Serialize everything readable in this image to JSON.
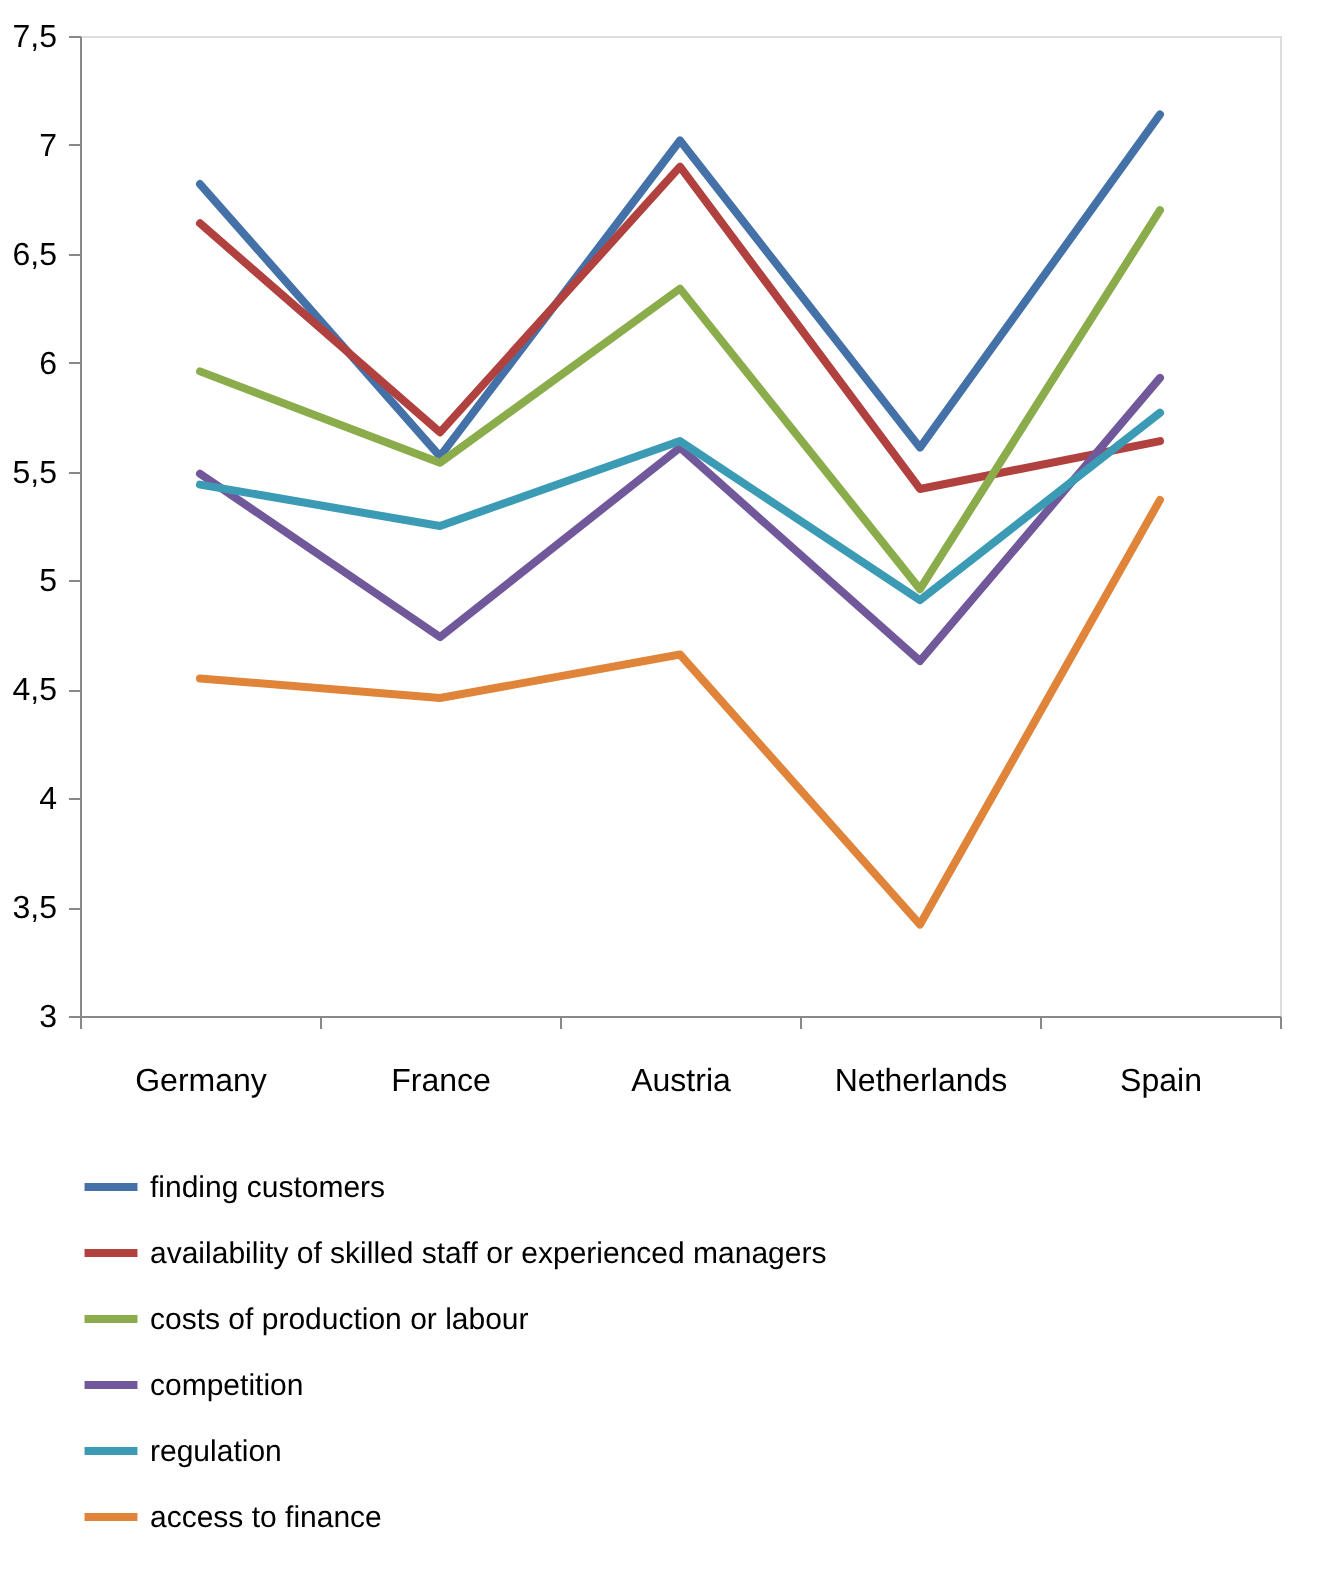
{
  "chart_data": {
    "type": "line",
    "categories": [
      "Germany",
      "France",
      "Austria",
      "Netherlands",
      "Spain"
    ],
    "series": [
      {
        "name": "finding customers",
        "color": "#4472a8",
        "values": [
          6.82,
          5.57,
          7.02,
          5.61,
          7.14
        ]
      },
      {
        "name": "availability of skilled staff or experienced managers",
        "color": "#b0413e",
        "values": [
          6.64,
          5.68,
          6.9,
          5.42,
          5.64
        ]
      },
      {
        "name": "costs of production or labour",
        "color": "#8aac4a",
        "values": [
          5.96,
          5.54,
          6.34,
          4.96,
          6.7
        ]
      },
      {
        "name": "competition",
        "color": "#71589a",
        "values": [
          5.49,
          4.74,
          5.61,
          4.63,
          5.93
        ]
      },
      {
        "name": "regulation",
        "color": "#3b9bb5",
        "values": [
          5.44,
          5.25,
          5.64,
          4.91,
          5.77
        ]
      },
      {
        "name": "access to finance",
        "color": "#e0843a",
        "values": [
          4.55,
          4.46,
          4.66,
          3.42,
          5.37
        ]
      }
    ],
    "ylim": [
      3,
      7.5
    ],
    "yticks": [
      3,
      {
        "value": 3.5,
        "label": "3,5"
      },
      4,
      {
        "value": 4.5,
        "label": "4,5"
      },
      5,
      {
        "value": 5.5,
        "label": "5,5"
      },
      6,
      {
        "value": 6.5,
        "label": "6,5"
      },
      7,
      {
        "value": 7.5,
        "label": "7,5"
      }
    ],
    "grid": false,
    "legend": "bottom",
    "marker": "none",
    "line_style": "solid"
  }
}
